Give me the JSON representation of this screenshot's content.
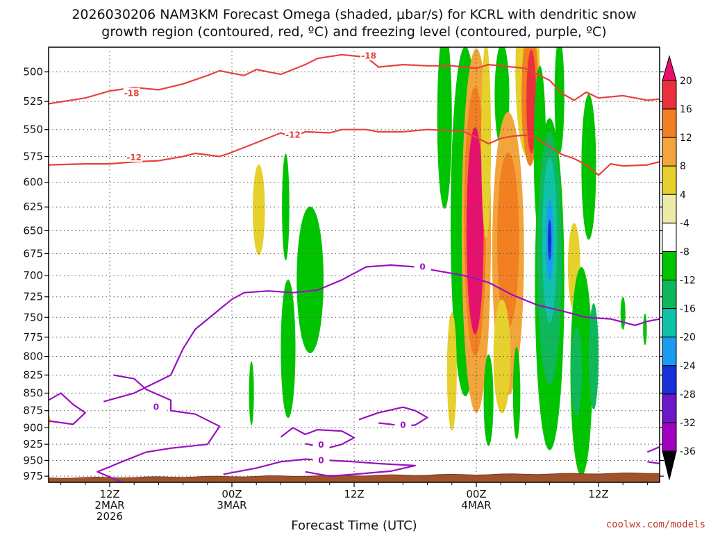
{
  "chart_data": {
    "type": "contour-timeheight",
    "title_line1": "2026030206 NAM3KM Forecast Omega (shaded, μbar/s) for KCRL with dendritic snow",
    "title_line2": "growth region (contoured, red, ºC) and freezing level (contoured, purple, ºC)",
    "xlabel": "Forecast Time (UTC)",
    "credit": "coolwx.com/models",
    "x_range_hours": [
      -5,
      45
    ],
    "y_range_hpa": [
      480,
      985
    ],
    "y_ticks": [
      500,
      525,
      550,
      575,
      600,
      625,
      650,
      675,
      700,
      725,
      750,
      775,
      800,
      825,
      850,
      875,
      900,
      925,
      950,
      975
    ],
    "x_ticks": [
      {
        "hour": 0,
        "lines": [
          "12Z",
          "2MAR",
          "2026"
        ]
      },
      {
        "hour": 10,
        "lines": [
          "00Z",
          "3MAR"
        ]
      },
      {
        "hour": 20,
        "lines": [
          "12Z"
        ]
      },
      {
        "hour": 30,
        "lines": [
          "00Z",
          "4MAR"
        ]
      },
      {
        "hour": 40,
        "lines": [
          "12Z"
        ]
      }
    ],
    "colorbar": {
      "labels": [
        "20",
        "16",
        "12",
        "8",
        "4",
        "-4",
        "-8",
        "-12",
        "-16",
        "-20",
        "-24",
        "-28",
        "-32",
        "-36"
      ],
      "bins": [
        {
          "color": "#e8106f"
        },
        {
          "color": "#e8313a"
        },
        {
          "color": "#f27f22"
        },
        {
          "color": "#f2a53a"
        },
        {
          "color": "#e6d02c"
        },
        {
          "color": "#ececa8"
        },
        {
          "color": "#ffffff"
        },
        {
          "color": "#00c400"
        },
        {
          "color": "#0fb85a"
        },
        {
          "color": "#10c2a8"
        },
        {
          "color": "#1a9cf0"
        },
        {
          "color": "#1830d8"
        },
        {
          "color": "#6a18c8"
        },
        {
          "color": "#a000c0"
        },
        {
          "color": "#9c9c9c"
        }
      ]
    },
    "omega_blobs": [
      {
        "t": 12.2,
        "p": 628,
        "rt": 0.5,
        "rp": 47,
        "color": "#e6d02c"
      },
      {
        "t": 14.4,
        "p": 625,
        "rt": 0.3,
        "rp": 55,
        "color": "#00c400"
      },
      {
        "t": 16.4,
        "p": 705,
        "rt": 1.1,
        "rp": 85,
        "color": "#00c400"
      },
      {
        "t": 14.6,
        "p": 790,
        "rt": 0.6,
        "rp": 90,
        "color": "#00c400"
      },
      {
        "t": 11.6,
        "p": 850,
        "rt": 0.2,
        "rp": 45,
        "color": "#00c400"
      },
      {
        "t": 27.4,
        "p": 540,
        "rt": 0.6,
        "rp": 80,
        "color": "#00c400"
      },
      {
        "t": 29.1,
        "p": 640,
        "rt": 1.2,
        "rp": 180,
        "color": "#00c400"
      },
      {
        "t": 30.0,
        "p": 650,
        "rt": 1.2,
        "rp": 190,
        "color": "#f2a53a"
      },
      {
        "t": 29.9,
        "p": 640,
        "rt": 0.9,
        "rp": 140,
        "color": "#f27f22"
      },
      {
        "t": 29.9,
        "p": 650,
        "rt": 0.7,
        "rp": 110,
        "color": "#e8106f"
      },
      {
        "t": 28.0,
        "p": 820,
        "rt": 0.4,
        "rp": 80,
        "color": "#e6d02c"
      },
      {
        "t": 30.8,
        "p": 560,
        "rt": 0.4,
        "rp": 90,
        "color": "#e6d02c"
      },
      {
        "t": 31.0,
        "p": 860,
        "rt": 0.4,
        "rp": 65,
        "color": "#00c400"
      },
      {
        "t": 32.1,
        "p": 520,
        "rt": 0.6,
        "rp": 45,
        "color": "#00c400"
      },
      {
        "t": 32.6,
        "p": 675,
        "rt": 1.3,
        "rp": 155,
        "color": "#f2a53a"
      },
      {
        "t": 32.6,
        "p": 660,
        "rt": 0.9,
        "rp": 95,
        "color": "#f27f22"
      },
      {
        "t": 32.1,
        "p": 800,
        "rt": 0.7,
        "rp": 75,
        "color": "#e6d02c"
      },
      {
        "t": 34.2,
        "p": 500,
        "rt": 1.0,
        "rp": 70,
        "color": "#e6d02c"
      },
      {
        "t": 34.4,
        "p": 520,
        "rt": 0.7,
        "rp": 60,
        "color": "#f27f22"
      },
      {
        "t": 34.5,
        "p": 525,
        "rt": 0.4,
        "rp": 45,
        "color": "#e8313a"
      },
      {
        "t": 35.2,
        "p": 570,
        "rt": 0.5,
        "rp": 80,
        "color": "#00c400"
      },
      {
        "t": 36.0,
        "p": 710,
        "rt": 1.2,
        "rp": 190,
        "color": "#00c400"
      },
      {
        "t": 36.0,
        "p": 680,
        "rt": 1.0,
        "rp": 140,
        "color": "#0fb85a"
      },
      {
        "t": 36.0,
        "p": 660,
        "rt": 0.6,
        "rp": 90,
        "color": "#10c2a8"
      },
      {
        "t": 36.0,
        "p": 660,
        "rt": 0.3,
        "rp": 45,
        "color": "#1a9cf0"
      },
      {
        "t": 36.0,
        "p": 660,
        "rt": 0.15,
        "rp": 22,
        "color": "#1830d8"
      },
      {
        "t": 36.8,
        "p": 520,
        "rt": 0.4,
        "rp": 50,
        "color": "#00c400"
      },
      {
        "t": 33.3,
        "p": 850,
        "rt": 0.3,
        "rp": 65,
        "color": "#00c400"
      },
      {
        "t": 38.0,
        "p": 690,
        "rt": 0.5,
        "rp": 50,
        "color": "#e6d02c"
      },
      {
        "t": 39.2,
        "p": 585,
        "rt": 0.6,
        "rp": 70,
        "color": "#00c400"
      },
      {
        "t": 38.6,
        "p": 820,
        "rt": 0.9,
        "rp": 140,
        "color": "#00c400"
      },
      {
        "t": 38.2,
        "p": 820,
        "rt": 0.45,
        "rp": 60,
        "color": "#0fb85a"
      },
      {
        "t": 39.6,
        "p": 800,
        "rt": 0.4,
        "rp": 70,
        "color": "#0fb85a"
      },
      {
        "t": 42.0,
        "p": 745,
        "rt": 0.2,
        "rp": 20,
        "color": "#00c400"
      },
      {
        "t": 43.8,
        "p": 765,
        "rt": 0.15,
        "rp": 20,
        "color": "#00c400"
      },
      {
        "t": -5.0,
        "p": 890,
        "rt": 0.15,
        "rp": 8,
        "color": "#e6d02c"
      }
    ],
    "isotherms": [
      {
        "label": "-18",
        "color": "#e8413c",
        "points": [
          [
            -5,
            527
          ],
          [
            -2,
            522
          ],
          [
            0,
            516
          ],
          [
            2,
            513
          ],
          [
            4,
            515
          ],
          [
            6,
            510
          ],
          [
            8,
            503
          ],
          [
            9,
            499
          ],
          [
            11,
            503
          ],
          [
            12,
            498
          ],
          [
            14,
            502
          ],
          [
            16,
            494
          ],
          [
            17,
            489
          ],
          [
            19,
            486
          ],
          [
            21,
            488
          ],
          [
            22,
            496
          ],
          [
            24,
            494
          ],
          [
            26,
            495
          ],
          [
            28,
            495
          ],
          [
            29,
            496
          ],
          [
            30,
            497
          ],
          [
            31,
            494
          ],
          [
            32,
            495
          ],
          [
            33,
            496
          ],
          [
            34,
            497
          ],
          [
            35,
            502
          ],
          [
            36,
            507
          ],
          [
            37,
            518
          ],
          [
            38,
            524
          ],
          [
            39,
            517
          ],
          [
            40,
            522
          ],
          [
            42,
            520
          ],
          [
            44,
            524
          ],
          [
            45,
            523
          ]
        ],
        "label_positions": [
          [
            1.8,
            518
          ],
          [
            21.2,
            487
          ]
        ]
      },
      {
        "label": "-12",
        "color": "#e8413c",
        "points": [
          [
            -5,
            583
          ],
          [
            -2,
            582
          ],
          [
            0,
            582
          ],
          [
            2,
            580
          ],
          [
            4,
            579
          ],
          [
            6,
            575
          ],
          [
            7,
            572
          ],
          [
            9,
            575
          ],
          [
            10,
            571
          ],
          [
            12,
            562
          ],
          [
            14,
            553
          ],
          [
            15,
            557
          ],
          [
            16,
            552
          ],
          [
            18,
            553
          ],
          [
            19,
            550
          ],
          [
            21,
            550
          ],
          [
            22,
            552
          ],
          [
            24,
            552
          ],
          [
            26,
            550
          ],
          [
            28,
            551
          ],
          [
            29,
            552
          ],
          [
            30,
            557
          ],
          [
            31,
            563
          ],
          [
            32,
            558
          ],
          [
            33,
            556
          ],
          [
            34,
            555
          ],
          [
            35,
            558
          ],
          [
            36,
            566
          ],
          [
            37,
            573
          ],
          [
            38,
            577
          ],
          [
            39,
            583
          ],
          [
            40,
            593
          ],
          [
            41,
            582
          ],
          [
            42,
            584
          ],
          [
            44,
            583
          ],
          [
            45,
            580
          ]
        ],
        "label_positions": [
          [
            2.0,
            576
          ],
          [
            15.0,
            555
          ]
        ]
      },
      {
        "label": "0",
        "color": "#9a10c0",
        "points": [
          [
            -5,
            860
          ],
          [
            -4,
            850
          ],
          [
            -3,
            866
          ],
          [
            -2,
            878
          ],
          [
            -3,
            895
          ],
          [
            -5,
            890
          ]
        ],
        "label_positions": []
      },
      {
        "label": "0",
        "color": "#9a10c0",
        "points": [
          [
            -0.5,
            862
          ],
          [
            2,
            850
          ],
          [
            5,
            825
          ],
          [
            6,
            790
          ],
          [
            7,
            765
          ],
          [
            9,
            740
          ],
          [
            10,
            728
          ],
          [
            11,
            720
          ],
          [
            13,
            718
          ],
          [
            15,
            720
          ],
          [
            17,
            717
          ],
          [
            19,
            705
          ],
          [
            21,
            690
          ],
          [
            23,
            688
          ],
          [
            25,
            690
          ],
          [
            27,
            695
          ],
          [
            29,
            700
          ],
          [
            31,
            708
          ],
          [
            33,
            723
          ],
          [
            35,
            735
          ],
          [
            37,
            742
          ],
          [
            39,
            750
          ],
          [
            41,
            752
          ],
          [
            43,
            760
          ],
          [
            44,
            755
          ],
          [
            45,
            752
          ]
        ],
        "label_positions": [
          [
            25.6,
            690
          ]
        ]
      },
      {
        "label": "0",
        "color": "#9a10c0",
        "points": [
          [
            0.3,
            825
          ],
          [
            2,
            830
          ],
          [
            3,
            845
          ],
          [
            5,
            860
          ],
          [
            5,
            875
          ],
          [
            7,
            880
          ],
          [
            9,
            898
          ],
          [
            8,
            925
          ],
          [
            5,
            931
          ],
          [
            3,
            937
          ],
          [
            1,
            952
          ],
          [
            0,
            960
          ],
          [
            -1,
            968
          ],
          [
            1,
            985
          ]
        ],
        "label_positions": [
          [
            3.8,
            870
          ]
        ]
      },
      {
        "label": "0",
        "color": "#9a10c0",
        "points": [
          [
            9.3,
            972
          ],
          [
            12,
            962
          ],
          [
            14,
            952
          ],
          [
            16,
            948
          ],
          [
            18,
            950
          ],
          [
            20,
            952
          ],
          [
            22,
            955
          ],
          [
            25,
            958
          ],
          [
            23,
            967
          ],
          [
            20,
            972
          ],
          [
            18,
            975
          ],
          [
            16,
            968
          ]
        ],
        "label_positions": [
          [
            17.3,
            950
          ]
        ]
      },
      {
        "label": "0",
        "color": "#9a10c0",
        "points": [
          [
            14,
            914
          ],
          [
            15,
            900
          ],
          [
            16,
            910
          ],
          [
            17,
            903
          ],
          [
            19,
            905
          ],
          [
            20,
            915
          ],
          [
            19,
            925
          ],
          [
            18,
            930
          ],
          [
            17,
            928
          ],
          [
            16,
            924
          ]
        ],
        "label_positions": [
          [
            17.3,
            926
          ]
        ]
      },
      {
        "label": "0",
        "color": "#9a10c0",
        "points": [
          [
            20.4,
            888
          ],
          [
            22,
            878
          ],
          [
            24,
            870
          ],
          [
            25,
            875
          ],
          [
            26,
            885
          ],
          [
            25,
            896
          ],
          [
            24,
            898
          ],
          [
            23,
            895
          ],
          [
            22,
            893
          ]
        ],
        "label_positions": [
          [
            24.0,
            896
          ]
        ]
      },
      {
        "label": "0",
        "color": "#9a10c0",
        "points": [
          [
            44,
            937
          ],
          [
            45,
            929
          ],
          [
            45,
            955
          ],
          [
            44,
            952
          ]
        ],
        "label_positions": []
      }
    ]
  }
}
